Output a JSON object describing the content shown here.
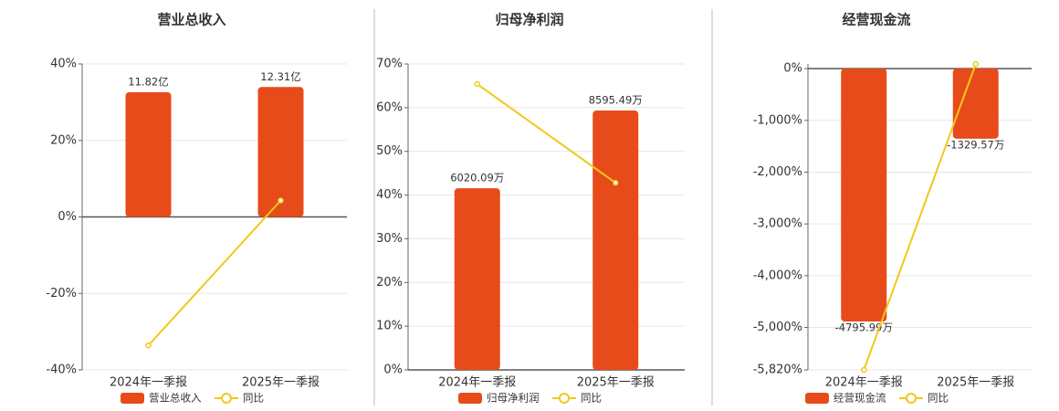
{
  "chart_data": [
    {
      "type": "combo",
      "title": "营业总收入",
      "categories": [
        "2024年一季报",
        "2025年一季报"
      ],
      "ylim": [
        -40,
        40
      ],
      "yticks": [
        {
          "value": -40,
          "label": "-40%"
        },
        {
          "value": -20,
          "label": "-20%"
        },
        {
          "value": 0,
          "label": "0%"
        },
        {
          "value": 20,
          "label": "20%"
        },
        {
          "value": 40,
          "label": "40%"
        }
      ],
      "y2lim": [
        -14.5,
        14.5
      ],
      "grid": true,
      "series": [
        {
          "name": "营业总收入",
          "type": "bar",
          "axis": "y2",
          "color": "#e84b1a",
          "values": [
            11.82,
            12.31
          ],
          "value_labels": [
            "11.82亿",
            "12.31亿"
          ]
        },
        {
          "name": "同比",
          "type": "line",
          "color": "#f2c81a",
          "values": [
            -33.6,
            4.3
          ]
        }
      ]
    },
    {
      "type": "combo",
      "title": "归母净利润",
      "categories": [
        "2024年一季报",
        "2025年一季报"
      ],
      "ylim": [
        0,
        70
      ],
      "yticks": [
        {
          "value": 0,
          "label": "0%"
        },
        {
          "value": 10,
          "label": "10%"
        },
        {
          "value": 20,
          "label": "20%"
        },
        {
          "value": 30,
          "label": "30%"
        },
        {
          "value": 40,
          "label": "40%"
        },
        {
          "value": 50,
          "label": "50%"
        },
        {
          "value": 60,
          "label": "60%"
        },
        {
          "value": 70,
          "label": "70%"
        }
      ],
      "y2lim": [
        0,
        10140
      ],
      "grid": true,
      "series": [
        {
          "name": "归母净利润",
          "type": "bar",
          "axis": "y2",
          "color": "#e84b1a",
          "values": [
            6020.09,
            8595.49
          ],
          "value_labels": [
            "6020.09万",
            "8595.49万"
          ]
        },
        {
          "name": "同比",
          "type": "line",
          "color": "#f2c81a",
          "values": [
            65.4,
            42.8
          ]
        }
      ]
    },
    {
      "type": "combo",
      "title": "经营现金流",
      "categories": [
        "2024年一季报",
        "2025年一季报"
      ],
      "ylim": [
        -5820,
        90
      ],
      "yticks": [
        {
          "value": -5820,
          "label": "-5,820%"
        },
        {
          "value": -5000,
          "label": "-5,000%"
        },
        {
          "value": -4000,
          "label": "-4,000%"
        },
        {
          "value": -3000,
          "label": "-3,000%"
        },
        {
          "value": -2000,
          "label": "-2,000%"
        },
        {
          "value": -1000,
          "label": "-1,000%"
        },
        {
          "value": 0,
          "label": "0%"
        }
      ],
      "y2lim": [
        -5714,
        88
      ],
      "grid": true,
      "series": [
        {
          "name": "经营现金流",
          "type": "bar",
          "axis": "y2",
          "color": "#e84b1a",
          "values": [
            -4795.99,
            -1329.57
          ],
          "value_labels": [
            "-4795.99万",
            "-1329.57万"
          ]
        },
        {
          "name": "同比",
          "type": "line",
          "color": "#f2c81a",
          "values": [
            -5820,
            88
          ]
        }
      ]
    }
  ]
}
